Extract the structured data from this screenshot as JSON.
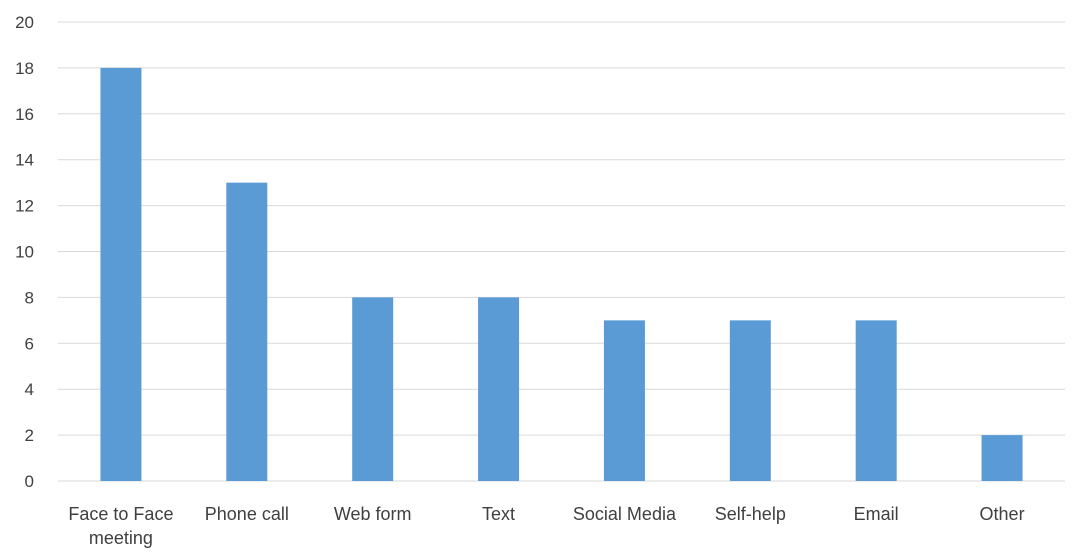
{
  "chart_data": {
    "type": "bar",
    "title": "",
    "xlabel": "",
    "ylabel": "",
    "categories": [
      [
        "Face to Face",
        "meeting"
      ],
      [
        "Phone call"
      ],
      [
        "Web form"
      ],
      [
        "Text"
      ],
      [
        "Social Media"
      ],
      [
        "Self-help"
      ],
      [
        "Email"
      ],
      [
        "Other"
      ]
    ],
    "values": [
      18,
      13,
      8,
      8,
      7,
      7,
      7,
      2
    ],
    "ylim": [
      0,
      20
    ],
    "yticks": [
      "0",
      "2",
      "4",
      "6",
      "8",
      "10",
      "12",
      "14",
      "16",
      "18",
      "20"
    ],
    "grid": true,
    "legend": "none",
    "colors": {
      "bar": "#5B9BD5",
      "grid": "#D9D9D9",
      "text": "#404040"
    }
  }
}
